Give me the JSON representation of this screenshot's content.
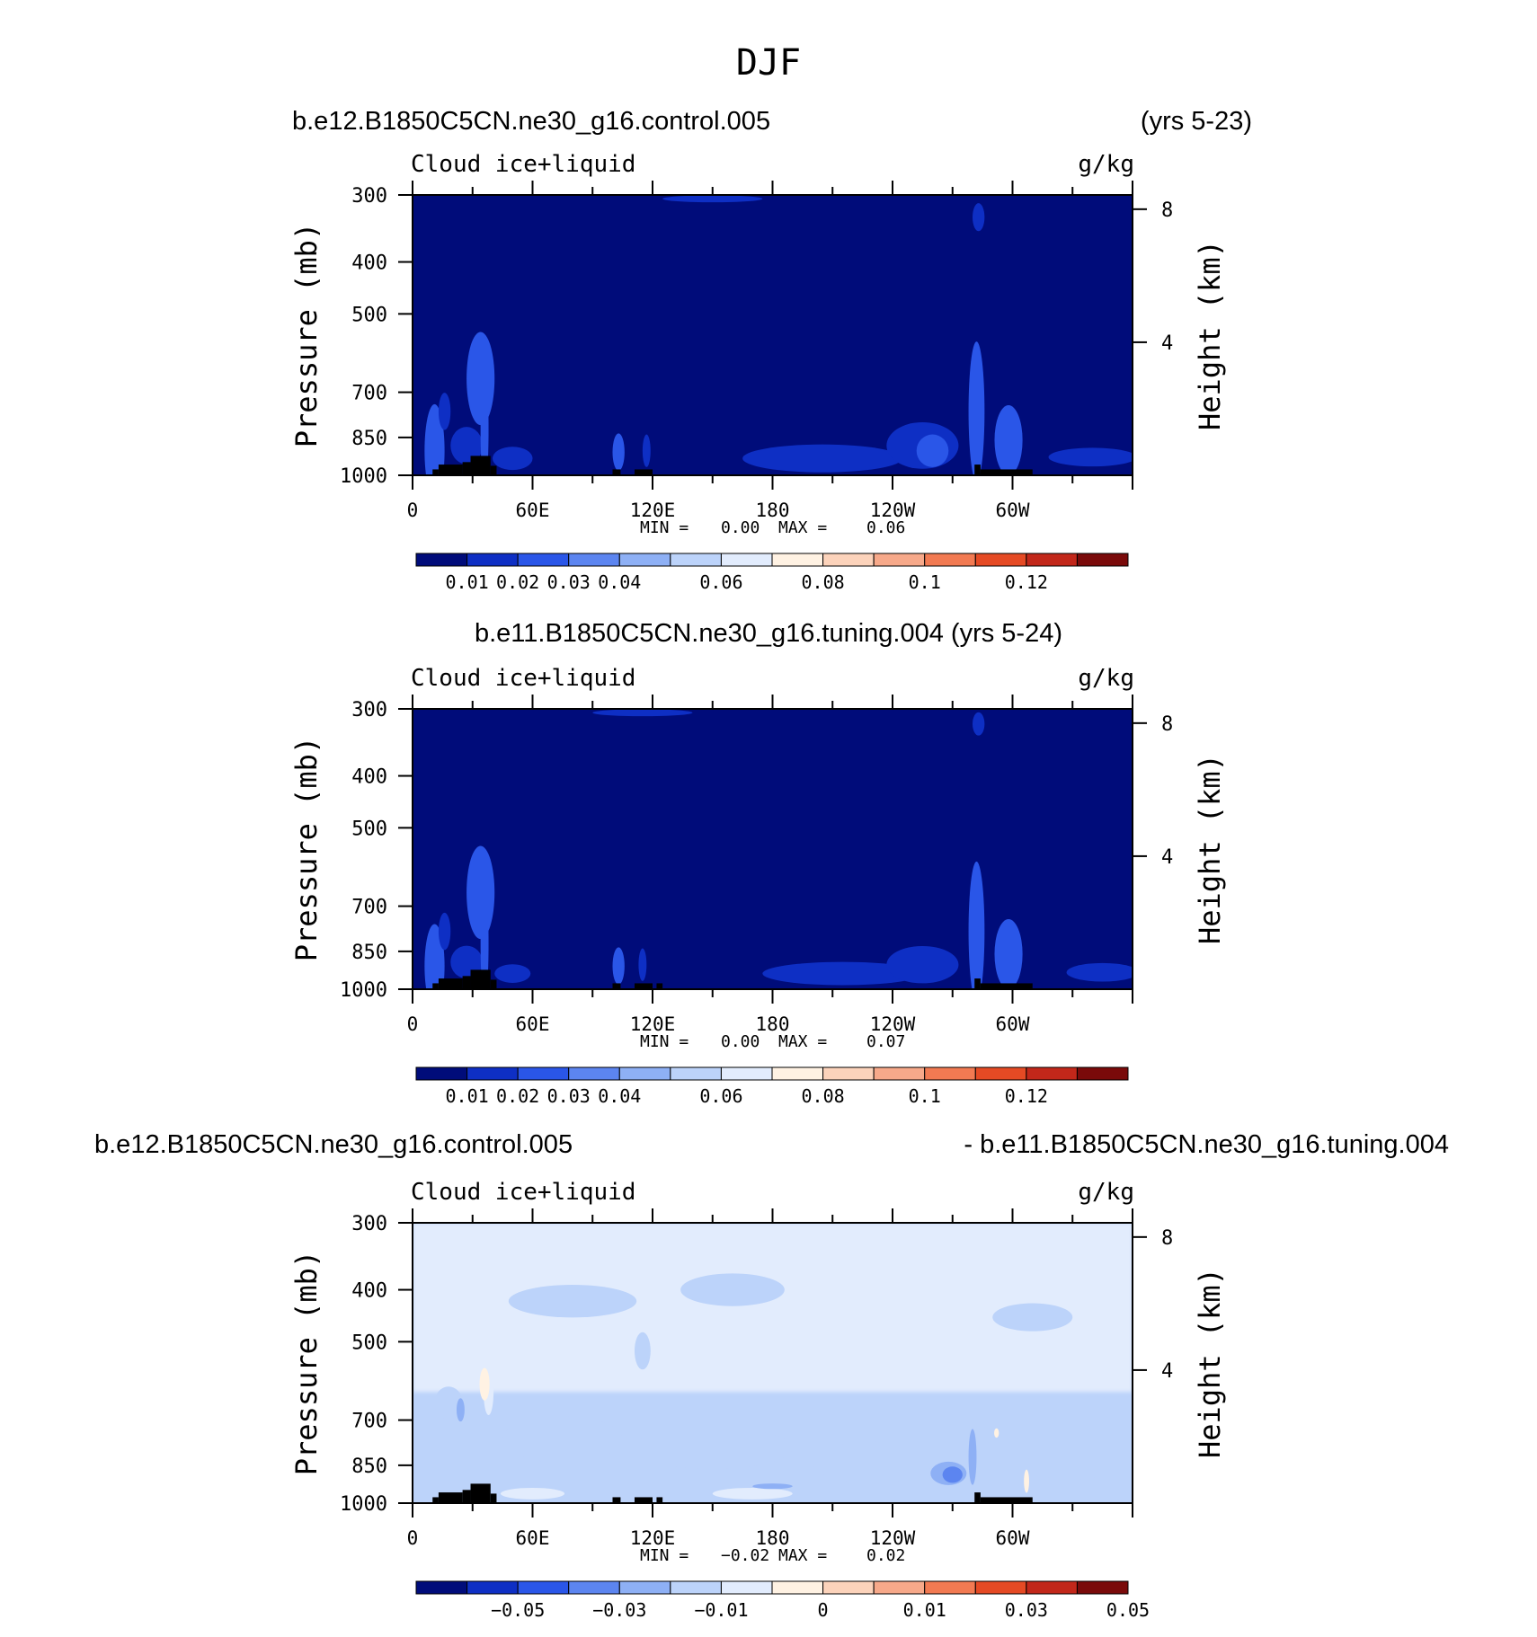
{
  "figure": {
    "title": "DJF"
  },
  "chart_data": [
    {
      "type": "heatmap",
      "header_left": "b.e12.B1850C5CN.ne30_g16.control.005",
      "header_right": "(yrs 5-23)",
      "variable_label": "Cloud ice+liquid",
      "units_label": "g/kg",
      "ylabel": "Pressure (mb)",
      "y2label": "Height (km)",
      "ylim": [
        1000,
        300
      ],
      "yscale": "log",
      "y_ticks": [
        "300",
        "400",
        "500",
        "700",
        "850",
        "1000"
      ],
      "y_tick_values": [
        300,
        400,
        500,
        700,
        850,
        1000
      ],
      "y2_ticks": [
        "8",
        "4"
      ],
      "y2_tick_values": [
        8,
        4
      ],
      "xlim": [
        0,
        360
      ],
      "x_ticks": [
        "0",
        "60E",
        "120E",
        "180",
        "120W",
        "60W"
      ],
      "x_tick_values": [
        0,
        60,
        120,
        180,
        240,
        300
      ],
      "min_label": "MIN =",
      "min_value": "0.00",
      "max_label": "MAX =",
      "max_value": "0.06",
      "colorbar_labels": [
        "0.01",
        "0.02",
        "0.03",
        "0.04",
        "0.06",
        "0.08",
        "0.1",
        "0.12"
      ],
      "background_level": 0,
      "features": [
        {
          "lon": 11,
          "p": 900,
          "sx": 2.5,
          "sy": 0.13,
          "level": 4
        },
        {
          "lon": 11,
          "p": 900,
          "sx": 5,
          "sy": 0.2,
          "level": 2
        },
        {
          "lon": 16,
          "p": 760,
          "sx": 3,
          "sy": 0.08,
          "level": 1
        },
        {
          "lon": 27,
          "p": 880,
          "sx": 8,
          "sy": 0.08,
          "level": 1
        },
        {
          "lon": 33,
          "p": 660,
          "sx": 3,
          "sy": 0.14,
          "level": 4
        },
        {
          "lon": 34,
          "p": 660,
          "sx": 7,
          "sy": 0.2,
          "level": 2
        },
        {
          "lon": 36,
          "p": 820,
          "sx": 2,
          "sy": 0.25,
          "level": 2
        },
        {
          "lon": 50,
          "p": 930,
          "sx": 10,
          "sy": 0.05,
          "level": 1
        },
        {
          "lon": 103,
          "p": 905,
          "sx": 3,
          "sy": 0.08,
          "level": 2
        },
        {
          "lon": 117,
          "p": 900,
          "sx": 2,
          "sy": 0.07,
          "level": 1
        },
        {
          "lon": 205,
          "p": 930,
          "sx": 40,
          "sy": 0.06,
          "level": 1
        },
        {
          "lon": 255,
          "p": 880,
          "sx": 18,
          "sy": 0.1,
          "level": 1
        },
        {
          "lon": 260,
          "p": 900,
          "sx": 8,
          "sy": 0.07,
          "level": 2
        },
        {
          "lon": 282,
          "p": 760,
          "sx": 2,
          "sy": 0.22,
          "level": 5
        },
        {
          "lon": 282,
          "p": 760,
          "sx": 4,
          "sy": 0.3,
          "level": 2
        },
        {
          "lon": 283,
          "p": 330,
          "sx": 3,
          "sy": 0.06,
          "level": 1
        },
        {
          "lon": 300,
          "p": 900,
          "sx": 3,
          "sy": 0.07,
          "level": 4
        },
        {
          "lon": 298,
          "p": 860,
          "sx": 7,
          "sy": 0.15,
          "level": 2
        },
        {
          "lon": 340,
          "p": 925,
          "sx": 22,
          "sy": 0.04,
          "level": 1
        },
        {
          "lon": 150,
          "p": 305,
          "sx": 25,
          "sy": 0.015,
          "level": 1
        }
      ],
      "terrain": [
        {
          "lon_start": 10,
          "lon_end": 13,
          "p": 975
        },
        {
          "lon_start": 13,
          "lon_end": 25,
          "p": 955
        },
        {
          "lon_start": 25,
          "lon_end": 29,
          "p": 945
        },
        {
          "lon_start": 29,
          "lon_end": 39,
          "p": 920
        },
        {
          "lon_start": 39,
          "lon_end": 42,
          "p": 960
        },
        {
          "lon_start": 100,
          "lon_end": 104,
          "p": 975
        },
        {
          "lon_start": 111,
          "lon_end": 120,
          "p": 975
        },
        {
          "lon_start": 281,
          "lon_end": 284,
          "p": 955
        },
        {
          "lon_start": 284,
          "lon_end": 310,
          "p": 975
        }
      ]
    },
    {
      "type": "heatmap",
      "header_center": "b.e11.B1850C5CN.ne30_g16.tuning.004 (yrs 5-24)",
      "variable_label": "Cloud ice+liquid",
      "units_label": "g/kg",
      "ylabel": "Pressure (mb)",
      "y2label": "Height (km)",
      "ylim": [
        1000,
        300
      ],
      "yscale": "log",
      "y_ticks": [
        "300",
        "400",
        "500",
        "700",
        "850",
        "1000"
      ],
      "y_tick_values": [
        300,
        400,
        500,
        700,
        850,
        1000
      ],
      "y2_ticks": [
        "8",
        "4"
      ],
      "y2_tick_values": [
        8,
        4
      ],
      "xlim": [
        0,
        360
      ],
      "x_ticks": [
        "0",
        "60E",
        "120E",
        "180",
        "120W",
        "60W"
      ],
      "x_tick_values": [
        0,
        60,
        120,
        180,
        240,
        300
      ],
      "min_label": "MIN =",
      "min_value": "0.00",
      "max_label": "MAX =",
      "max_value": "0.07",
      "colorbar_labels": [
        "0.01",
        "0.02",
        "0.03",
        "0.04",
        "0.06",
        "0.08",
        "0.1",
        "0.12"
      ],
      "background_level": 0,
      "features": [
        {
          "lon": 11,
          "p": 905,
          "sx": 2.5,
          "sy": 0.12,
          "level": 4
        },
        {
          "lon": 11,
          "p": 905,
          "sx": 5,
          "sy": 0.18,
          "level": 2
        },
        {
          "lon": 16,
          "p": 780,
          "sx": 3,
          "sy": 0.08,
          "level": 1
        },
        {
          "lon": 27,
          "p": 890,
          "sx": 8,
          "sy": 0.07,
          "level": 1
        },
        {
          "lon": 33,
          "p": 650,
          "sx": 3,
          "sy": 0.14,
          "level": 4
        },
        {
          "lon": 34,
          "p": 660,
          "sx": 7,
          "sy": 0.2,
          "level": 2
        },
        {
          "lon": 36,
          "p": 820,
          "sx": 2,
          "sy": 0.25,
          "level": 2
        },
        {
          "lon": 50,
          "p": 935,
          "sx": 9,
          "sy": 0.04,
          "level": 1
        },
        {
          "lon": 103,
          "p": 905,
          "sx": 3,
          "sy": 0.08,
          "level": 2
        },
        {
          "lon": 115,
          "p": 900,
          "sx": 2,
          "sy": 0.07,
          "level": 1
        },
        {
          "lon": 215,
          "p": 935,
          "sx": 40,
          "sy": 0.05,
          "level": 1
        },
        {
          "lon": 255,
          "p": 900,
          "sx": 18,
          "sy": 0.08,
          "level": 1
        },
        {
          "lon": 282,
          "p": 780,
          "sx": 2,
          "sy": 0.22,
          "level": 4
        },
        {
          "lon": 282,
          "p": 780,
          "sx": 4,
          "sy": 0.3,
          "level": 2
        },
        {
          "lon": 283,
          "p": 320,
          "sx": 3,
          "sy": 0.05,
          "level": 1
        },
        {
          "lon": 301,
          "p": 905,
          "sx": 3,
          "sy": 0.07,
          "level": 4
        },
        {
          "lon": 298,
          "p": 860,
          "sx": 7,
          "sy": 0.15,
          "level": 2
        },
        {
          "lon": 345,
          "p": 930,
          "sx": 18,
          "sy": 0.04,
          "level": 1
        },
        {
          "lon": 115,
          "p": 305,
          "sx": 25,
          "sy": 0.015,
          "level": 1
        }
      ],
      "terrain": [
        {
          "lon_start": 10,
          "lon_end": 13,
          "p": 975
        },
        {
          "lon_start": 13,
          "lon_end": 25,
          "p": 955
        },
        {
          "lon_start": 25,
          "lon_end": 29,
          "p": 945
        },
        {
          "lon_start": 29,
          "lon_end": 39,
          "p": 920
        },
        {
          "lon_start": 39,
          "lon_end": 42,
          "p": 960
        },
        {
          "lon_start": 100,
          "lon_end": 104,
          "p": 975
        },
        {
          "lon_start": 111,
          "lon_end": 120,
          "p": 975
        },
        {
          "lon_start": 122,
          "lon_end": 125,
          "p": 975
        },
        {
          "lon_start": 281,
          "lon_end": 284,
          "p": 955
        },
        {
          "lon_start": 284,
          "lon_end": 310,
          "p": 975
        }
      ]
    },
    {
      "type": "heatmap",
      "header_left": "b.e12.B1850C5CN.ne30_g16.control.005",
      "header_right": "- b.e11.B1850C5CN.ne30_g16.tuning.004",
      "variable_label": "Cloud ice+liquid",
      "units_label": "g/kg",
      "ylabel": "Pressure (mb)",
      "y2label": "Height (km)",
      "ylim": [
        1000,
        300
      ],
      "yscale": "log",
      "y_ticks": [
        "300",
        "400",
        "500",
        "700",
        "850",
        "1000"
      ],
      "y_tick_values": [
        300,
        400,
        500,
        700,
        850,
        1000
      ],
      "y2_ticks": [
        "8",
        "4"
      ],
      "y2_tick_values": [
        8,
        4
      ],
      "xlim": [
        0,
        360
      ],
      "x_ticks": [
        "0",
        "60E",
        "120E",
        "180",
        "120W",
        "60W"
      ],
      "x_tick_values": [
        0,
        60,
        120,
        180,
        240,
        300
      ],
      "min_label": "MIN =",
      "min_value": "−0.02",
      "max_label": "MAX =",
      "max_value": "0.02",
      "colorbar_labels": [
        "−0.05",
        "−0.03",
        "−0.01",
        "0",
        "0.01",
        "0.03",
        "0.05"
      ],
      "background_level": 5,
      "regions": [
        {
          "lon_start": 0,
          "lon_end": 360,
          "p_top": 300,
          "p_bot": 620,
          "level": 6
        },
        {
          "lon_start": 0,
          "lon_end": 360,
          "p_top": 940,
          "p_bot": 1000,
          "level": 5
        }
      ],
      "features": [
        {
          "lon": 80,
          "p": 420,
          "sx": 32,
          "sy": 0.07,
          "level": 5
        },
        {
          "lon": 160,
          "p": 400,
          "sx": 26,
          "sy": 0.07,
          "level": 5
        },
        {
          "lon": 115,
          "p": 520,
          "sx": 4,
          "sy": 0.08,
          "level": 5
        },
        {
          "lon": 310,
          "p": 450,
          "sx": 20,
          "sy": 0.06,
          "level": 5
        },
        {
          "lon": 340,
          "p": 670,
          "sx": 12,
          "sy": 0.06,
          "level": 5
        },
        {
          "lon": 18,
          "p": 650,
          "sx": 7,
          "sy": 0.07,
          "level": 5
        },
        {
          "lon": 75,
          "p": 760,
          "sx": 30,
          "sy": 0.1,
          "level": 5
        },
        {
          "lon": 150,
          "p": 790,
          "sx": 40,
          "sy": 0.09,
          "level": 5
        },
        {
          "lon": 230,
          "p": 840,
          "sx": 30,
          "sy": 0.09,
          "level": 5
        },
        {
          "lon": 330,
          "p": 850,
          "sx": 25,
          "sy": 0.06,
          "level": 5
        },
        {
          "lon": 60,
          "p": 960,
          "sx": 16,
          "sy": 0.025,
          "level": 6
        },
        {
          "lon": 170,
          "p": 960,
          "sx": 20,
          "sy": 0.025,
          "level": 6
        },
        {
          "lon": 38,
          "p": 620,
          "sx": 2.5,
          "sy": 0.1,
          "level": 6
        },
        {
          "lon": 36,
          "p": 600,
          "sx": 1.5,
          "sy": 0.05,
          "level": 8
        },
        {
          "lon": 36,
          "p": 600,
          "sx": 2.5,
          "sy": 0.07,
          "level": 7
        },
        {
          "lon": 24,
          "p": 670,
          "sx": 2,
          "sy": 0.05,
          "level": 4
        },
        {
          "lon": 268,
          "p": 880,
          "sx": 9,
          "sy": 0.05,
          "level": 4
        },
        {
          "lon": 270,
          "p": 885,
          "sx": 5,
          "sy": 0.035,
          "level": 3
        },
        {
          "lon": 280,
          "p": 820,
          "sx": 2,
          "sy": 0.12,
          "level": 4
        },
        {
          "lon": 292,
          "p": 740,
          "sx": 1.2,
          "sy": 0.02,
          "level": 7
        },
        {
          "lon": 307,
          "p": 910,
          "sx": 1.3,
          "sy": 0.05,
          "level": 7
        },
        {
          "lon": 180,
          "p": 930,
          "sx": 10,
          "sy": 0.012,
          "level": 4
        }
      ],
      "terrain": [
        {
          "lon_start": 10,
          "lon_end": 13,
          "p": 975
        },
        {
          "lon_start": 13,
          "lon_end": 25,
          "p": 955
        },
        {
          "lon_start": 25,
          "lon_end": 29,
          "p": 945
        },
        {
          "lon_start": 29,
          "lon_end": 39,
          "p": 920
        },
        {
          "lon_start": 39,
          "lon_end": 42,
          "p": 960
        },
        {
          "lon_start": 100,
          "lon_end": 104,
          "p": 975
        },
        {
          "lon_start": 111,
          "lon_end": 120,
          "p": 975
        },
        {
          "lon_start": 122,
          "lon_end": 125,
          "p": 975
        },
        {
          "lon_start": 281,
          "lon_end": 284,
          "p": 955
        },
        {
          "lon_start": 284,
          "lon_end": 310,
          "p": 975
        }
      ]
    }
  ],
  "colormap": [
    "#000c7a",
    "#0e2fc4",
    "#2a56e8",
    "#5c85f0",
    "#8eb0f5",
    "#bcd3fa",
    "#e2ecfd",
    "#fff2e3",
    "#fcd3bb",
    "#f7a98a",
    "#f27a52",
    "#e54a24",
    "#c2271a",
    "#7a0a0a"
  ],
  "terrain_color": "#000000"
}
